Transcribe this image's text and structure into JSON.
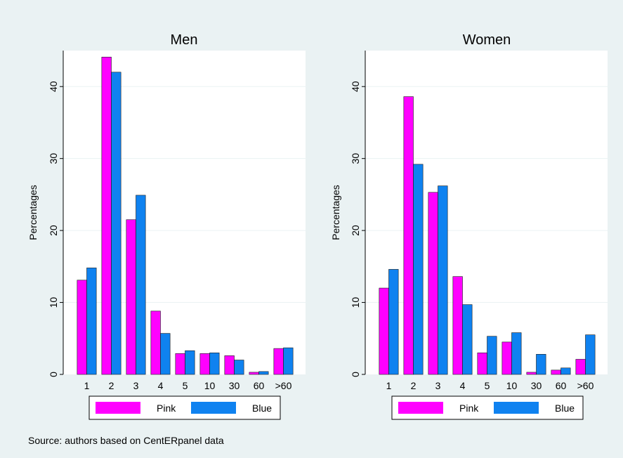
{
  "chart_data": [
    {
      "type": "bar",
      "title": "Men",
      "ylabel": "Percentages",
      "xlabel": "",
      "ylim": [
        0,
        45
      ],
      "yticks": [
        0,
        10,
        20,
        30,
        40
      ],
      "categories": [
        "1",
        "2",
        "3",
        "4",
        "5",
        "10",
        "30",
        "60",
        ">60"
      ],
      "series": [
        {
          "name": "Pink",
          "color": "#ff00ff",
          "values": [
            13.1,
            44.1,
            21.5,
            8.8,
            2.9,
            2.9,
            2.6,
            0.3,
            3.6
          ]
        },
        {
          "name": "Blue",
          "color": "#0f82f0",
          "values": [
            14.8,
            42.0,
            24.9,
            5.7,
            3.3,
            3.0,
            2.0,
            0.4,
            3.7
          ]
        }
      ],
      "grid": true,
      "legend": "bottom"
    },
    {
      "type": "bar",
      "title": "Women",
      "ylabel": "Percentages",
      "xlabel": "",
      "ylim": [
        0,
        45
      ],
      "yticks": [
        0,
        10,
        20,
        30,
        40
      ],
      "categories": [
        "1",
        "2",
        "3",
        "4",
        "5",
        "10",
        "30",
        "60",
        ">60"
      ],
      "series": [
        {
          "name": "Pink",
          "color": "#ff00ff",
          "values": [
            12.0,
            38.6,
            25.3,
            13.6,
            3.0,
            4.5,
            0.3,
            0.6,
            2.1
          ]
        },
        {
          "name": "Blue",
          "color": "#0f82f0",
          "values": [
            14.6,
            29.2,
            26.2,
            9.7,
            5.3,
            5.8,
            2.8,
            0.9,
            5.5
          ]
        }
      ],
      "grid": true,
      "legend": "bottom"
    }
  ],
  "source_note": "Source: authors based on CentERpanel data",
  "colors": {
    "background": "#eaf2f3",
    "plot_area": "#ffffff",
    "grid": "#eaf2f3"
  }
}
